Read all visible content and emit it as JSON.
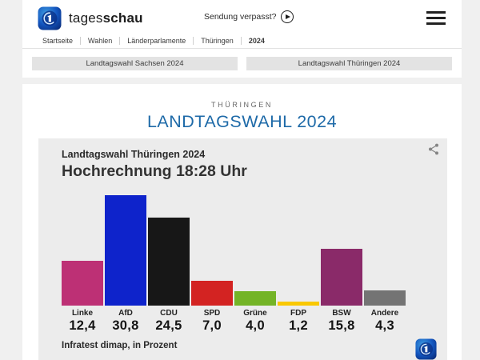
{
  "header": {
    "brand_regular": "tages",
    "brand_bold": "schau",
    "sendung_verpasst": "Sendung verpasst?",
    "icons": [
      "tagesschau-globe-logo",
      "play-icon",
      "hamburger-menu-icon"
    ]
  },
  "breadcrumb": {
    "items": [
      "Startseite",
      "Wahlen",
      "Länderparlamente",
      "Thüringen",
      "2024"
    ]
  },
  "nav_buttons": [
    {
      "label": "Landtagswahl Sachsen 2024"
    },
    {
      "label": "Landtagswahl Thüringen 2024"
    }
  ],
  "page": {
    "kicker": "THÜRINGEN",
    "title": "LANDTAGSWAHL 2024",
    "title_color": "#1e6aa8"
  },
  "chart_data": {
    "type": "bar",
    "title": "Landtagswahl Thüringen 2024",
    "subtitle": "Hochrechnung 18:28 Uhr",
    "source": "Infratest dimap, in Prozent",
    "categories": [
      "Linke",
      "AfD",
      "CDU",
      "SPD",
      "Grüne",
      "FDP",
      "BSW",
      "Andere"
    ],
    "values": [
      12.4,
      30.8,
      24.5,
      7.0,
      4.0,
      1.2,
      15.8,
      4.3
    ],
    "value_labels": [
      "12,4",
      "30,8",
      "24,5",
      "7,0",
      "4,0",
      "1,2",
      "15,8",
      "4,3"
    ],
    "colors": [
      "#bd3075",
      "#0e23cb",
      "#171717",
      "#d32322",
      "#74b427",
      "#f9c801",
      "#8a2a69",
      "#747474"
    ],
    "unit": "Prozent",
    "ylim": [
      0,
      31
    ],
    "grid": false,
    "legend": "none",
    "background": "#ececec"
  }
}
